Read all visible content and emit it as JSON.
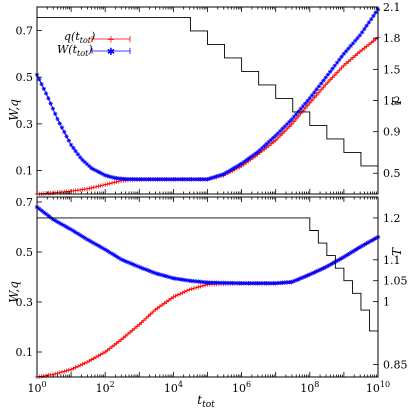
{
  "chart_data": [
    {
      "type": "line",
      "panel": "top",
      "xscale": "log",
      "xlim": [
        1,
        10000000000
      ],
      "ylim": [
        0,
        0.8
      ],
      "y2lim": [
        0.3,
        2.1
      ],
      "ylabel": "W,q",
      "y2label": "T",
      "xlabel": "",
      "yticks": [
        0.1,
        0.3,
        0.5,
        0.7
      ],
      "ytick_labels": [
        "0.1",
        "0.3",
        "0.5",
        "0.7"
      ],
      "y2ticks": [
        0.5,
        0.9,
        1.2,
        1.5,
        1.8,
        2.1
      ],
      "y2tick_labels": [
        "0.5",
        "0.9",
        "1.2",
        "1.5",
        "1.8",
        "2.1"
      ],
      "legend": {
        "placement": "top-left",
        "entries": [
          "q(t_tot)",
          "W(t_tot)"
        ]
      },
      "legend_labels": [
        {
          "base": "q(t",
          "sub": "tot",
          "end": ")"
        },
        {
          "base": "W(t",
          "sub": "tot",
          "end": ")"
        }
      ],
      "series": [
        {
          "name": "q(t_tot)",
          "color": "#ff0000",
          "axis": "left",
          "marker": "plus",
          "x": [
            1,
            3,
            10,
            30,
            100,
            300,
            1000,
            3000,
            10000,
            100000,
            300000,
            1000000,
            3000000,
            10000000,
            30000000,
            100000000,
            300000000,
            1000000000,
            3000000000,
            10000000000
          ],
          "y": [
            0.0,
            0.005,
            0.012,
            0.022,
            0.04,
            0.057,
            0.062,
            0.063,
            0.063,
            0.063,
            0.08,
            0.12,
            0.17,
            0.23,
            0.3,
            0.39,
            0.47,
            0.55,
            0.61,
            0.67
          ]
        },
        {
          "name": "W(t_tot)",
          "color": "#0000ff",
          "axis": "left",
          "marker": "star",
          "x": [
            1,
            2,
            4,
            10,
            20,
            40,
            100,
            200,
            400,
            1000,
            10000,
            100000,
            300000,
            1000000,
            3000000,
            10000000,
            30000000,
            100000000,
            300000000,
            1000000000,
            3000000000,
            10000000000
          ],
          "y": [
            0.51,
            0.42,
            0.32,
            0.21,
            0.15,
            0.11,
            0.08,
            0.068,
            0.064,
            0.063,
            0.063,
            0.063,
            0.085,
            0.13,
            0.18,
            0.25,
            0.32,
            0.41,
            0.5,
            0.6,
            0.68,
            0.79
          ]
        },
        {
          "name": "T",
          "color": "#000000",
          "axis": "right",
          "marker": "none",
          "x": [
            1,
            10000,
            31600,
            100000,
            316000,
            1000000,
            3160000,
            10000000,
            31600000,
            100000000,
            316000000,
            1000000000,
            3160000000,
            10000000000
          ],
          "y": [
            2.0,
            2.0,
            1.87,
            1.74,
            1.61,
            1.48,
            1.35,
            1.22,
            1.09,
            0.96,
            0.83,
            0.7,
            0.57,
            0.44
          ]
        }
      ]
    },
    {
      "type": "line",
      "panel": "bottom",
      "xscale": "log",
      "xlim": [
        1,
        10000000000
      ],
      "ylim": [
        0.0,
        0.72
      ],
      "y2lim": [
        0.82,
        1.25
      ],
      "ylabel": "W,q",
      "y2label": "T",
      "xlabel": "t_tot",
      "xlabel_parts": {
        "base": "t",
        "sub": "tot"
      },
      "xticks": [
        1,
        100,
        10000,
        1000000,
        100000000,
        10000000000
      ],
      "xtick_labels": [
        {
          "base": "10",
          "exp": "0"
        },
        {
          "base": "10",
          "exp": "2"
        },
        {
          "base": "10",
          "exp": "4"
        },
        {
          "base": "10",
          "exp": "6"
        },
        {
          "base": "10",
          "exp": "8"
        },
        {
          "base": "10",
          "exp": "10"
        }
      ],
      "yticks": [
        0.1,
        0.3,
        0.5,
        0.7
      ],
      "ytick_labels": [
        "0.1",
        "0.3",
        "0.5",
        "0.7"
      ],
      "y2ticks": [
        0.85,
        1.0,
        1.05,
        1.1,
        1.2
      ],
      "y2tick_labels": [
        "0.85",
        "1",
        "1.05",
        "1.1",
        "1.2"
      ],
      "series": [
        {
          "name": "q(t_tot)",
          "color": "#ff0000",
          "axis": "left",
          "marker": "plus",
          "x": [
            1,
            3,
            10,
            30,
            100,
            300,
            1000,
            3000,
            10000,
            30000,
            100000,
            1000000,
            10000000,
            30000000,
            100000000,
            300000000,
            1000000000,
            3000000000,
            10000000000
          ],
          "y": [
            0.0,
            0.01,
            0.03,
            0.06,
            0.1,
            0.15,
            0.21,
            0.27,
            0.32,
            0.35,
            0.37,
            0.375,
            0.375,
            0.38,
            0.41,
            0.44,
            0.48,
            0.52,
            0.56
          ]
        },
        {
          "name": "W(t_tot)",
          "color": "#0000ff",
          "axis": "left",
          "marker": "star",
          "x": [
            1,
            3,
            10,
            30,
            100,
            300,
            1000,
            3000,
            10000,
            30000,
            100000,
            1000000,
            10000000,
            30000000,
            100000000,
            300000000,
            1000000000,
            3000000000,
            10000000000
          ],
          "y": [
            0.68,
            0.63,
            0.59,
            0.55,
            0.51,
            0.47,
            0.44,
            0.415,
            0.395,
            0.385,
            0.378,
            0.375,
            0.375,
            0.38,
            0.41,
            0.44,
            0.48,
            0.52,
            0.56
          ]
        },
        {
          "name": "T",
          "color": "#000000",
          "axis": "right",
          "marker": "none",
          "x": [
            1,
            60000000,
            100000000,
            178000000,
            316000000,
            562000000,
            1000000000,
            1780000000,
            3160000000,
            5620000000,
            10000000000
          ],
          "y": [
            1.2,
            1.2,
            1.17,
            1.14,
            1.11,
            1.08,
            1.05,
            1.02,
            0.98,
            0.93,
            0.86
          ]
        }
      ]
    }
  ]
}
